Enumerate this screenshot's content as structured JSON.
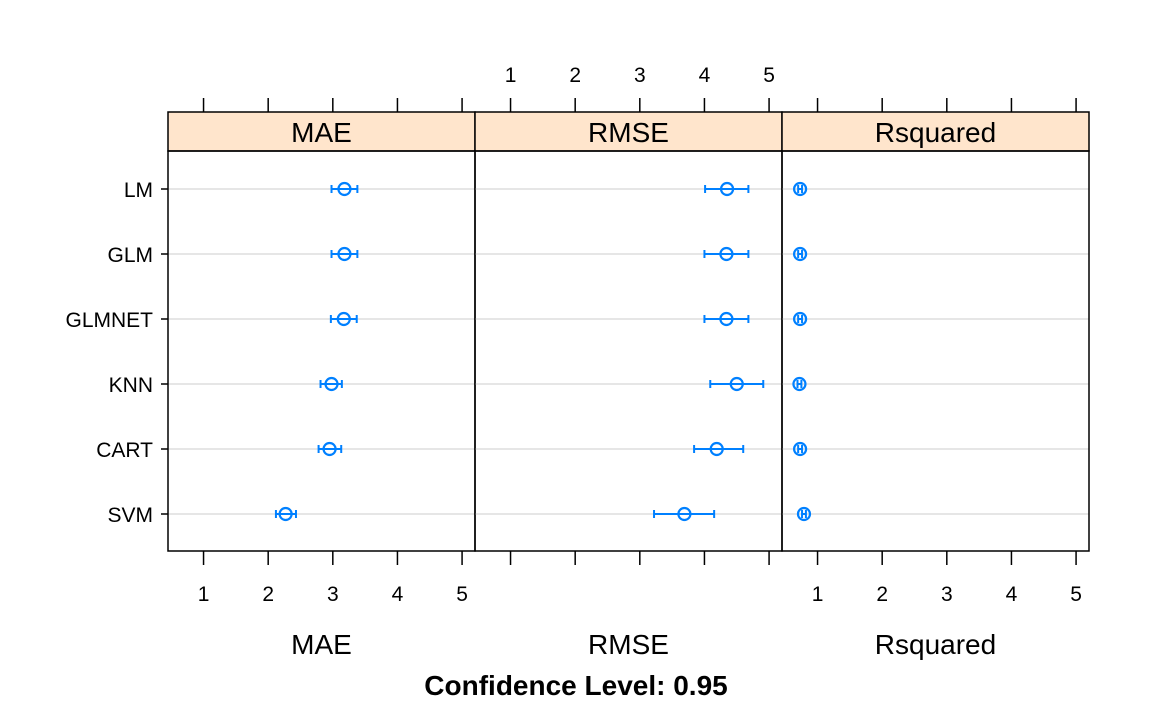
{
  "chart_data": {
    "type": "dotplot",
    "caption": "Confidence Level: 0.95",
    "categories": [
      "LM",
      "GLM",
      "GLMNET",
      "KNN",
      "CART",
      "SVM"
    ],
    "xlim": [
      0.45,
      5.2
    ],
    "x_ticks": [
      1,
      2,
      3,
      4,
      5
    ],
    "grid": true,
    "point_color": "#0080ff",
    "strip_color": "#ffe5cc",
    "gridline_color": "#e6e6e6",
    "panels": [
      {
        "name": "MAE",
        "xlabel": "MAE",
        "series": [
          {
            "model": "LM",
            "value": 3.18,
            "lower": 2.98,
            "upper": 3.38
          },
          {
            "model": "GLM",
            "value": 3.18,
            "lower": 2.98,
            "upper": 3.38
          },
          {
            "model": "GLMNET",
            "value": 3.17,
            "lower": 2.97,
            "upper": 3.37
          },
          {
            "model": "KNN",
            "value": 2.98,
            "lower": 2.81,
            "upper": 3.14
          },
          {
            "model": "CART",
            "value": 2.95,
            "lower": 2.78,
            "upper": 3.13
          },
          {
            "model": "SVM",
            "value": 2.27,
            "lower": 2.12,
            "upper": 2.43
          }
        ]
      },
      {
        "name": "RMSE",
        "xlabel": "RMSE",
        "series": [
          {
            "model": "LM",
            "value": 4.35,
            "lower": 4.01,
            "upper": 4.68
          },
          {
            "model": "GLM",
            "value": 4.34,
            "lower": 4.0,
            "upper": 4.68
          },
          {
            "model": "GLMNET",
            "value": 4.34,
            "lower": 4.0,
            "upper": 4.68
          },
          {
            "model": "KNN",
            "value": 4.5,
            "lower": 4.09,
            "upper": 4.91
          },
          {
            "model": "CART",
            "value": 4.19,
            "lower": 3.84,
            "upper": 4.6
          },
          {
            "model": "SVM",
            "value": 3.69,
            "lower": 3.22,
            "upper": 4.15
          }
        ]
      },
      {
        "name": "Rsquared",
        "xlabel": "Rsquared",
        "series": [
          {
            "model": "LM",
            "value": 0.73,
            "lower": 0.7,
            "upper": 0.76
          },
          {
            "model": "GLM",
            "value": 0.73,
            "lower": 0.7,
            "upper": 0.76
          },
          {
            "model": "GLMNET",
            "value": 0.73,
            "lower": 0.7,
            "upper": 0.76
          },
          {
            "model": "KNN",
            "value": 0.72,
            "lower": 0.69,
            "upper": 0.75
          },
          {
            "model": "CART",
            "value": 0.73,
            "lower": 0.7,
            "upper": 0.76
          },
          {
            "model": "SVM",
            "value": 0.79,
            "lower": 0.76,
            "upper": 0.82
          }
        ]
      }
    ]
  }
}
